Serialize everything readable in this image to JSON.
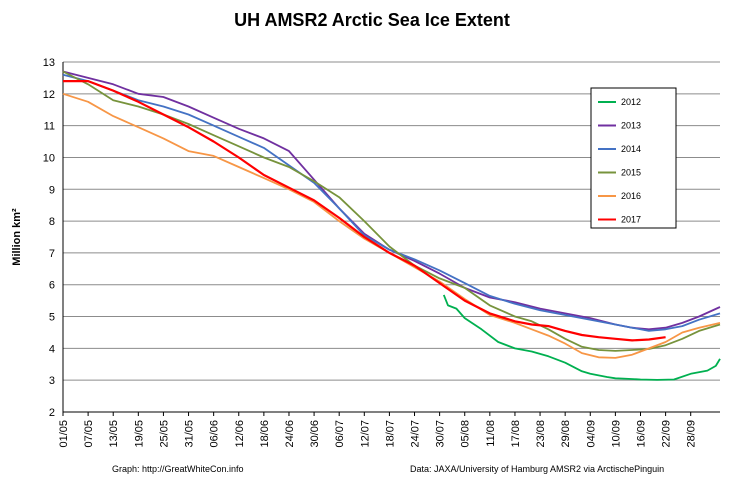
{
  "chart_data": {
    "type": "line",
    "title": "UH AMSR2 Arctic Sea Ice Extent",
    "ylabel": "Million km²",
    "ylim": [
      2,
      13
    ],
    "yticks": [
      2,
      3,
      4,
      5,
      6,
      7,
      8,
      9,
      10,
      11,
      12,
      13
    ],
    "xlim": [
      0,
      157
    ],
    "xtick_labels": [
      "01/05",
      "07/05",
      "13/05",
      "19/05",
      "25/05",
      "31/05",
      "06/06",
      "12/06",
      "18/06",
      "24/06",
      "30/06",
      "06/07",
      "12/07",
      "18/07",
      "24/07",
      "30/07",
      "05/08",
      "11/08",
      "17/08",
      "23/08",
      "29/08",
      "04/09",
      "10/09",
      "16/09",
      "22/09",
      "28/09"
    ],
    "grid": "horizontal",
    "legend_position": "right",
    "footer_left": "Graph: http://GreatWhiteCon.info",
    "footer_right": "Data: JAXA/University of Hamburg AMSR2 via ArctischePinguin",
    "series": [
      {
        "name": "2012",
        "color": "#00b050",
        "x": [
          91,
          92,
          94,
          96,
          100,
          104,
          108,
          112,
          116,
          120,
          124,
          126,
          128,
          130,
          132,
          134,
          138,
          142,
          146,
          150,
          154,
          156,
          157
        ],
        "y": [
          5.68,
          5.35,
          5.25,
          4.95,
          4.6,
          4.2,
          4.0,
          3.9,
          3.75,
          3.55,
          3.28,
          3.2,
          3.15,
          3.1,
          3.06,
          3.05,
          3.02,
          3.01,
          3.02,
          3.2,
          3.3,
          3.45,
          3.67
        ]
      },
      {
        "name": "2013",
        "color": "#7030a0",
        "x": [
          0,
          6,
          12,
          18,
          24,
          30,
          36,
          42,
          48,
          54,
          60,
          66,
          72,
          78,
          84,
          90,
          96,
          102,
          108,
          114,
          120,
          126,
          132,
          136,
          140,
          144,
          148,
          152,
          157
        ],
        "y": [
          12.7,
          12.5,
          12.3,
          12.0,
          11.9,
          11.6,
          11.25,
          10.9,
          10.6,
          10.2,
          9.3,
          8.4,
          7.6,
          7.1,
          6.75,
          6.35,
          5.9,
          5.6,
          5.45,
          5.25,
          5.1,
          4.95,
          4.75,
          4.65,
          4.6,
          4.65,
          4.8,
          5.0,
          5.3
        ]
      },
      {
        "name": "2014",
        "color": "#4472c4",
        "x": [
          0,
          6,
          12,
          18,
          24,
          30,
          36,
          42,
          48,
          54,
          60,
          66,
          72,
          78,
          84,
          90,
          96,
          102,
          108,
          114,
          120,
          126,
          132,
          136,
          140,
          144,
          148,
          152,
          157
        ],
        "y": [
          12.6,
          12.4,
          12.1,
          11.8,
          11.6,
          11.35,
          11.0,
          10.65,
          10.3,
          9.75,
          9.2,
          8.4,
          7.55,
          7.1,
          6.8,
          6.45,
          6.05,
          5.65,
          5.4,
          5.2,
          5.05,
          4.9,
          4.75,
          4.65,
          4.55,
          4.6,
          4.7,
          4.9,
          5.1
        ]
      },
      {
        "name": "2015",
        "color": "#77933c",
        "x": [
          0,
          6,
          12,
          18,
          24,
          30,
          36,
          42,
          48,
          54,
          60,
          66,
          72,
          78,
          84,
          90,
          96,
          102,
          108,
          112,
          116,
          120,
          124,
          128,
          132,
          136,
          140,
          144,
          148,
          152,
          157
        ],
        "y": [
          12.7,
          12.3,
          11.8,
          11.6,
          11.35,
          11.05,
          10.7,
          10.35,
          10.0,
          9.7,
          9.25,
          8.75,
          8.0,
          7.2,
          6.6,
          6.2,
          5.9,
          5.35,
          5.0,
          4.85,
          4.6,
          4.3,
          4.05,
          3.95,
          3.92,
          3.95,
          3.98,
          4.1,
          4.3,
          4.55,
          4.75
        ]
      },
      {
        "name": "2016",
        "color": "#f79646",
        "x": [
          0,
          6,
          12,
          18,
          24,
          30,
          36,
          42,
          48,
          54,
          60,
          66,
          72,
          78,
          84,
          90,
          96,
          102,
          108,
          112,
          116,
          120,
          124,
          128,
          132,
          136,
          140,
          144,
          148,
          152,
          157
        ],
        "y": [
          12.0,
          11.75,
          11.3,
          10.95,
          10.6,
          10.2,
          10.05,
          9.7,
          9.35,
          9.0,
          8.6,
          8.0,
          7.45,
          7.0,
          6.55,
          6.1,
          5.55,
          5.05,
          4.8,
          4.6,
          4.4,
          4.15,
          3.85,
          3.72,
          3.7,
          3.8,
          4.0,
          4.2,
          4.5,
          4.65,
          4.8
        ]
      },
      {
        "name": "2017",
        "color": "#ff0000",
        "x": [
          0,
          6,
          12,
          18,
          24,
          30,
          36,
          42,
          48,
          54,
          60,
          66,
          72,
          78,
          84,
          90,
          96,
          102,
          108,
          112,
          116,
          120,
          124,
          128,
          132,
          136,
          140,
          144
        ],
        "y": [
          12.4,
          12.4,
          12.1,
          11.75,
          11.35,
          10.95,
          10.5,
          10.0,
          9.45,
          9.05,
          8.65,
          8.1,
          7.5,
          7.0,
          6.6,
          6.05,
          5.5,
          5.1,
          4.85,
          4.75,
          4.7,
          4.55,
          4.42,
          4.35,
          4.3,
          4.25,
          4.28,
          4.35
        ]
      }
    ]
  }
}
